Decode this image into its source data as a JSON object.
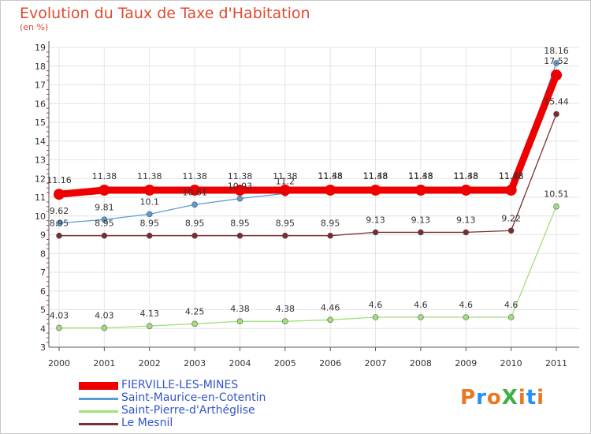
{
  "chart_data": {
    "type": "line",
    "title": "Evolution du Taux de Taxe d'Habitation",
    "subtitle": "(en %)",
    "x": [
      "2000",
      "2001",
      "2002",
      "2003",
      "2004",
      "2005",
      "2006",
      "2007",
      "2008",
      "2009",
      "2010",
      "2011"
    ],
    "y_ticks": [
      3,
      4,
      5,
      6,
      7,
      8,
      9,
      10,
      11,
      12,
      13,
      14,
      15,
      16,
      17,
      18,
      19
    ],
    "ylim": [
      3,
      19
    ],
    "grid": true,
    "legend_position": "bottom-left",
    "series": [
      {
        "name": "FIERVILLE-LES-MINES",
        "color": "#ee0000",
        "values": [
          11.16,
          11.38,
          11.38,
          11.38,
          11.38,
          11.38,
          11.38,
          11.38,
          11.38,
          11.38,
          11.38,
          17.52
        ],
        "labels": [
          "11.16",
          "11.38",
          "11.38",
          "11.38",
          "11.38",
          "11.38",
          "11.38",
          "11.38",
          "11.38",
          "11.38",
          "11.38",
          "17.52"
        ]
      },
      {
        "name": "Saint-Maurice-en-Cotentin",
        "color": "#5b9bd5",
        "values": [
          9.62,
          9.81,
          10.1,
          10.61,
          10.93,
          11.2,
          11.48,
          11.48,
          11.48,
          11.48,
          11.48,
          18.16
        ],
        "labels": [
          "9.62",
          "9.81",
          "10.1",
          "10.61",
          "10.93",
          "11.2",
          "11.48",
          "11.48",
          "11.48",
          "11.48",
          "11.48",
          "18.16"
        ]
      },
      {
        "name": "Saint-Pierre-d'Arthéglise",
        "color": "#9ee07a",
        "values": [
          4.03,
          4.03,
          4.13,
          4.25,
          4.38,
          4.38,
          4.46,
          4.6,
          4.6,
          4.6,
          4.6,
          10.51
        ],
        "labels": [
          "4.03",
          "4.03",
          "4.13",
          "4.25",
          "4.38",
          "4.38",
          "4.46",
          "4.6",
          "4.6",
          "4.6",
          "4.6",
          "10.51"
        ]
      },
      {
        "name": "Le Mesnil",
        "color": "#7b2d2d",
        "values": [
          8.95,
          8.95,
          8.95,
          8.95,
          8.95,
          8.95,
          8.95,
          9.13,
          9.13,
          9.13,
          9.22,
          15.44
        ],
        "labels": [
          "8.95",
          "8.95",
          "8.95",
          "8.95",
          "8.95",
          "8.95",
          "8.95",
          "9.13",
          "9.13",
          "9.13",
          "9.22",
          "15.44"
        ]
      }
    ]
  },
  "branding": {
    "logo_text": "ProXiti",
    "logo_colors": [
      "#e87722",
      "#1e90ff",
      "#e87722",
      "#3cb043",
      "#e87722",
      "#1e90ff",
      "#e87722"
    ]
  }
}
